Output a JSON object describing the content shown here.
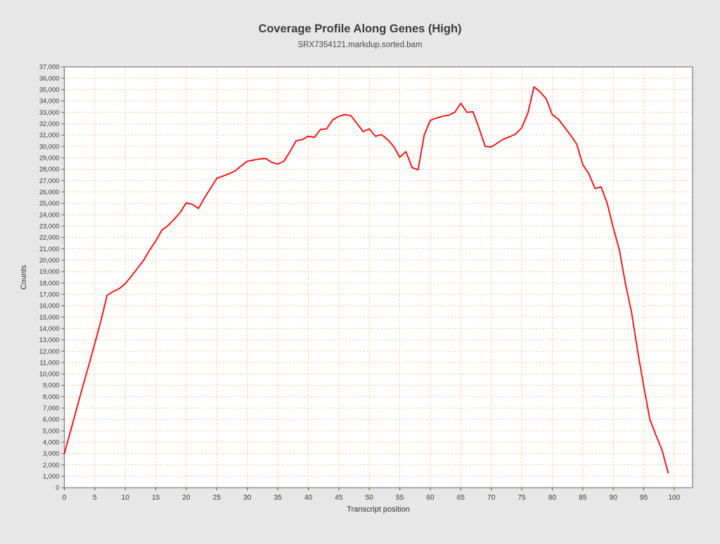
{
  "window": {
    "background_color": "#e7e7e7"
  },
  "chart_data": {
    "type": "line",
    "title": "Coverage Profile Along Genes (High)",
    "subtitle": "SRX7354121.markdup.sorted.bam",
    "xlabel": "Transcript position",
    "ylabel": "Counts",
    "xlim": [
      0,
      103
    ],
    "ylim": [
      0,
      37000
    ],
    "x_tick_step": 5,
    "x_tick_max": 100,
    "y_tick_step": 1000,
    "grid": true,
    "legend": "none",
    "colors": {
      "line": "#ff0000",
      "grid": "#f3c9a0",
      "plot_background": "#ffffff",
      "figure_background": "#e7e7e7",
      "axis_border": "#7a7a7a",
      "tick_mark": "#555555"
    },
    "series": [
      {
        "name": "SRX7354121.markdup.sorted.bam",
        "x": [
          0,
          1,
          2,
          3,
          4,
          5,
          6,
          7,
          8,
          9,
          10,
          11,
          12,
          13,
          14,
          15,
          16,
          17,
          18,
          19,
          20,
          21,
          22,
          23,
          24,
          25,
          26,
          27,
          28,
          29,
          30,
          31,
          32,
          33,
          34,
          35,
          36,
          37,
          38,
          39,
          40,
          41,
          42,
          43,
          44,
          45,
          46,
          47,
          48,
          49,
          50,
          51,
          52,
          53,
          54,
          55,
          56,
          57,
          58,
          59,
          60,
          61,
          62,
          63,
          64,
          65,
          66,
          67,
          68,
          69,
          70,
          71,
          72,
          73,
          74,
          75,
          76,
          77,
          78,
          79,
          80,
          81,
          82,
          83,
          84,
          85,
          86,
          87,
          88,
          89,
          90,
          91,
          92,
          93,
          94,
          95,
          96,
          97,
          98,
          99
        ],
        "values": [
          3000,
          4950,
          6900,
          8850,
          10750,
          12700,
          14650,
          16900,
          17250,
          17500,
          17950,
          18600,
          19300,
          20000,
          20900,
          21700,
          22650,
          23050,
          23600,
          24200,
          25050,
          24900,
          24550,
          25500,
          26350,
          27200,
          27400,
          27600,
          27850,
          28300,
          28700,
          28800,
          28900,
          28950,
          28600,
          28450,
          28700,
          29550,
          30500,
          30600,
          30900,
          30800,
          31500,
          31550,
          32350,
          32650,
          32800,
          32700,
          32000,
          31300,
          31550,
          30900,
          31050,
          30600,
          30000,
          29050,
          29550,
          28150,
          27950,
          31000,
          32300,
          32500,
          32650,
          32750,
          33000,
          33800,
          33000,
          33050,
          31600,
          30000,
          29950,
          30300,
          30650,
          30850,
          31100,
          31650,
          32950,
          35250,
          34800,
          34200,
          32800,
          32400,
          31700,
          31000,
          30200,
          28400,
          27600,
          26300,
          26450,
          25000,
          22850,
          20900,
          17900,
          15400,
          12000,
          8900,
          6000,
          4600,
          3300,
          1300
        ]
      }
    ]
  }
}
